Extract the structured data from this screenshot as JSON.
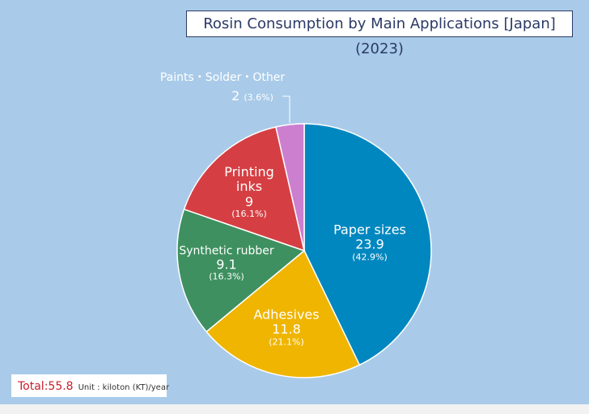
{
  "chart_data": {
    "type": "pie",
    "title": "Rosin Consumption by Main Applications [Japan] (2023)",
    "categories": [
      "Paper sizes",
      "Adhesives",
      "Synthetic rubber",
      "Printing inks",
      "Paints・Solder・Other"
    ],
    "values": [
      23.9,
      11.8,
      9.1,
      9.0,
      2.0
    ],
    "percent_labels": [
      "(42.9%)",
      "(21.1%)",
      "(16.3%)",
      "(16.1%)",
      "(3.6%)"
    ],
    "colors": [
      "#0087bf",
      "#efb500",
      "#3e9060",
      "#d53f43",
      "#cd7fcf"
    ],
    "total": "Total:55.8",
    "unit": "Unit : kiloton (KT)/year"
  }
}
